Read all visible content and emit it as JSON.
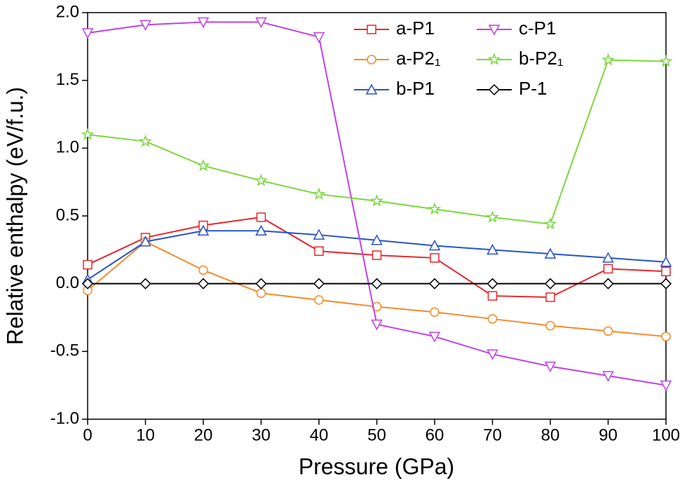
{
  "chart_data": {
    "type": "line",
    "x_label": "Pressure (GPa)",
    "y_label": "Relative enthalpy (eV/f.u.)",
    "x": [
      0,
      10,
      20,
      30,
      40,
      50,
      60,
      70,
      80,
      90,
      100
    ],
    "xlim": [
      0,
      100
    ],
    "xticks": [
      0,
      10,
      20,
      30,
      40,
      50,
      60,
      70,
      80,
      90,
      100
    ],
    "ylim": [
      -1,
      2
    ],
    "yticks": [
      {
        "value": -1,
        "label": "-1.0"
      },
      -0.5,
      {
        "value": 0,
        "label": "0.0"
      },
      0.5,
      {
        "value": 1,
        "label": "1.0"
      },
      1.5,
      {
        "value": 2,
        "label": "2.0"
      }
    ],
    "series": [
      {
        "name": "a-P1",
        "color": "#e8262a",
        "marker": "square",
        "values": [
          0.14,
          0.34,
          0.43,
          0.49,
          0.24,
          0.21,
          0.19,
          -0.09,
          -0.1,
          0.11,
          0.09
        ]
      },
      {
        "name": "a-P2₁",
        "color": "#f58a2c",
        "marker": "circle",
        "values": [
          -0.05,
          0.31,
          0.1,
          -0.07,
          -0.12,
          -0.17,
          -0.21,
          -0.26,
          -0.31,
          -0.35,
          -0.39
        ]
      },
      {
        "name": "b-P1",
        "color": "#2653c8",
        "marker": "triangle",
        "values": [
          0.03,
          0.31,
          0.39,
          0.39,
          0.36,
          0.32,
          0.28,
          0.25,
          0.22,
          0.19,
          0.16
        ]
      },
      {
        "name": "c-P1",
        "color": "#c040e8",
        "marker": "triangle-down",
        "values": [
          1.85,
          1.91,
          1.93,
          1.93,
          1.82,
          -0.3,
          -0.39,
          -0.52,
          -0.61,
          -0.68,
          -0.75
        ]
      },
      {
        "name": "b-P2₁",
        "color": "#7ad83c",
        "marker": "star",
        "values": [
          1.1,
          1.05,
          0.87,
          0.76,
          0.66,
          0.61,
          0.55,
          0.49,
          0.44,
          1.65,
          1.64
        ]
      },
      {
        "name": "P-1",
        "color": "#000000",
        "marker": "diamond",
        "values": [
          0,
          0,
          0,
          0,
          0,
          0,
          0,
          0,
          0,
          0,
          0
        ]
      }
    ]
  }
}
